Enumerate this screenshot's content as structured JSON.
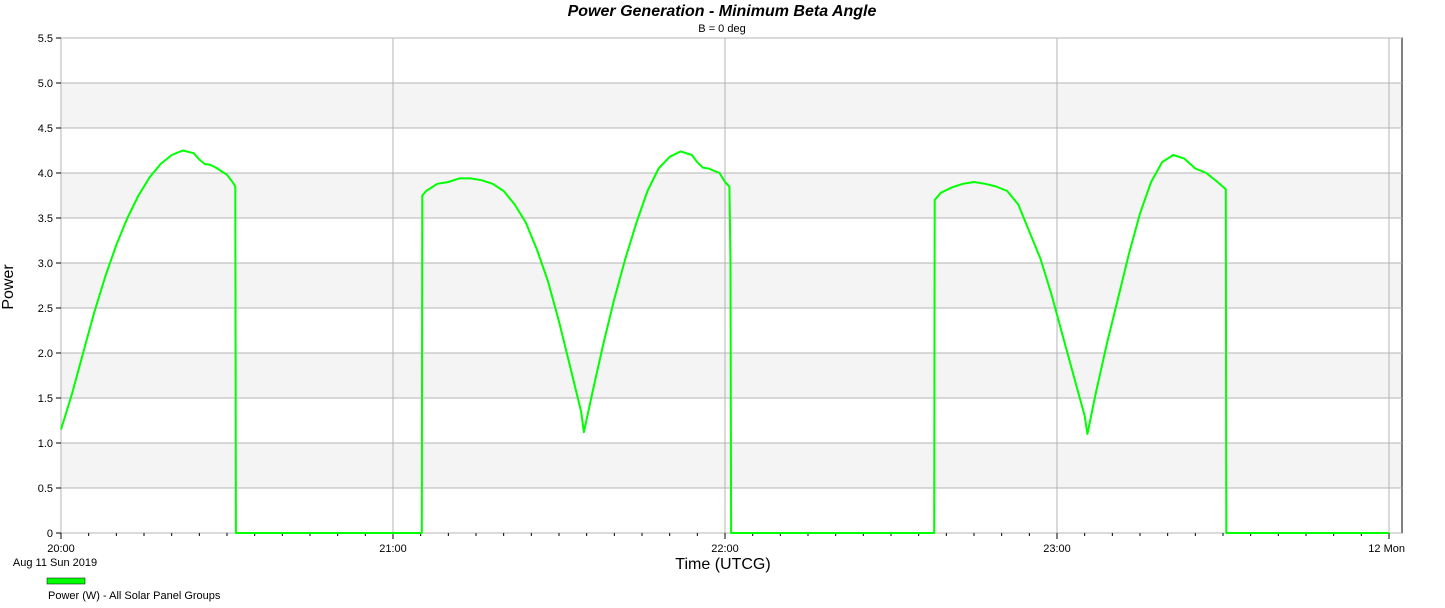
{
  "chart_data": {
    "type": "line",
    "title": "Power Generation - Minimum Beta Angle",
    "subtitle": "B = 0 deg",
    "xlabel": "Time (UTCG)",
    "ylabel": "Power",
    "xlim": [
      "20:00",
      "24:00"
    ],
    "ylim": [
      0,
      5.5
    ],
    "yticks": [
      "0",
      "0.5",
      "1.0",
      "1.5",
      "2.0",
      "2.5",
      "3.0",
      "3.5",
      "4.0",
      "4.5",
      "5.0",
      "5.5"
    ],
    "xticks": [
      {
        "label": "20:00",
        "sublabel": "Aug 11 Sun 2019"
      },
      {
        "label": "21:00"
      },
      {
        "label": "22:00"
      },
      {
        "label": "23:00"
      },
      {
        "label": "12 Mon"
      }
    ],
    "grid": true,
    "legend_position": "bottom-left",
    "colors": {
      "series": "#00ff00",
      "band": "#f4f4f4",
      "grid": "#b4b4b4"
    },
    "series": [
      {
        "name": "Power (W) - All Solar Panel Groups",
        "points": [
          [
            "20:00",
            1.15
          ],
          [
            "20:02",
            1.55
          ],
          [
            "20:04",
            2.0
          ],
          [
            "20:06",
            2.45
          ],
          [
            "20:08",
            2.85
          ],
          [
            "20:10",
            3.2
          ],
          [
            "20:12",
            3.5
          ],
          [
            "20:14",
            3.75
          ],
          [
            "20:16",
            3.95
          ],
          [
            "20:18",
            4.1
          ],
          [
            "20:20",
            4.2
          ],
          [
            "20:22",
            4.25
          ],
          [
            "20:24",
            4.22
          ],
          [
            "20:25",
            4.15
          ],
          [
            "20:26",
            4.1
          ],
          [
            "20:27",
            4.09
          ],
          [
            "20:28",
            4.06
          ],
          [
            "20:30",
            3.98
          ],
          [
            "20:31",
            3.9
          ],
          [
            "20:31.5",
            3.85
          ],
          [
            "20:31.6",
            0
          ],
          [
            "21:05.2",
            0
          ],
          [
            "21:05.3",
            3.75
          ],
          [
            "21:06",
            3.8
          ],
          [
            "21:08",
            3.88
          ],
          [
            "21:10",
            3.9
          ],
          [
            "21:12",
            3.94
          ],
          [
            "21:14",
            3.94
          ],
          [
            "21:16",
            3.92
          ],
          [
            "21:18",
            3.88
          ],
          [
            "21:20",
            3.8
          ],
          [
            "21:22",
            3.65
          ],
          [
            "21:24",
            3.45
          ],
          [
            "21:26",
            3.15
          ],
          [
            "21:28",
            2.8
          ],
          [
            "21:30",
            2.35
          ],
          [
            "21:32",
            1.85
          ],
          [
            "21:34",
            1.35
          ],
          [
            "21:34.5",
            1.12
          ],
          [
            "21:36",
            1.55
          ],
          [
            "21:38",
            2.1
          ],
          [
            "21:40",
            2.6
          ],
          [
            "21:42",
            3.05
          ],
          [
            "21:44",
            3.45
          ],
          [
            "21:46",
            3.8
          ],
          [
            "21:48",
            4.05
          ],
          [
            "21:50",
            4.18
          ],
          [
            "21:52",
            4.24
          ],
          [
            "21:54",
            4.2
          ],
          [
            "21:55",
            4.12
          ],
          [
            "21:56",
            4.06
          ],
          [
            "21:57",
            4.05
          ],
          [
            "21:59",
            4.0
          ],
          [
            "22:00",
            3.9
          ],
          [
            "22:00.8",
            3.85
          ],
          [
            "22:01",
            3.0
          ],
          [
            "22:01.1",
            0
          ],
          [
            "22:37.8",
            0
          ],
          [
            "22:37.9",
            3.7
          ],
          [
            "22:39",
            3.78
          ],
          [
            "22:41",
            3.84
          ],
          [
            "22:43",
            3.88
          ],
          [
            "22:45",
            3.9
          ],
          [
            "22:47",
            3.88
          ],
          [
            "22:49",
            3.85
          ],
          [
            "22:51",
            3.8
          ],
          [
            "22:53",
            3.65
          ],
          [
            "22:55",
            3.35
          ],
          [
            "22:57",
            3.05
          ],
          [
            "22:59",
            2.65
          ],
          [
            "23:01",
            2.2
          ],
          [
            "23:03",
            1.75
          ],
          [
            "23:05",
            1.3
          ],
          [
            "23:05.5",
            1.1
          ],
          [
            "23:07",
            1.55
          ],
          [
            "23:09",
            2.1
          ],
          [
            "23:11",
            2.6
          ],
          [
            "23:13",
            3.1
          ],
          [
            "23:15",
            3.55
          ],
          [
            "23:17",
            3.9
          ],
          [
            "23:19",
            4.12
          ],
          [
            "23:21",
            4.2
          ],
          [
            "23:23",
            4.16
          ],
          [
            "23:25",
            4.05
          ],
          [
            "23:27",
            4.0
          ],
          [
            "23:29",
            3.9
          ],
          [
            "23:30.5",
            3.82
          ],
          [
            "23:30.6",
            0
          ],
          [
            "24:00",
            0
          ]
        ]
      }
    ]
  }
}
